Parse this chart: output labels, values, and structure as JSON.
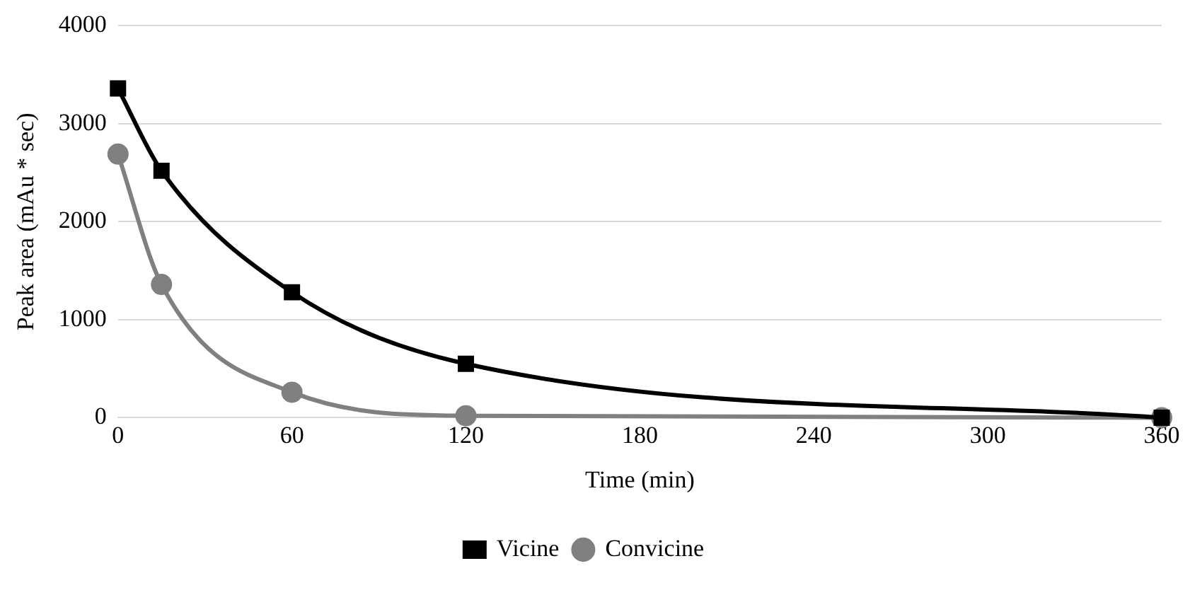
{
  "chart_data": {
    "type": "line",
    "xlabel": "Time (min)",
    "ylabel": "Peak area (mAu * sec)",
    "x": [
      0,
      15,
      60,
      120,
      360
    ],
    "series": [
      {
        "name": "Vicine",
        "color": "#000000",
        "marker": "square",
        "values": [
          3360,
          2520,
          1280,
          550,
          0
        ]
      },
      {
        "name": "Convicine",
        "color": "#808080",
        "marker": "circle",
        "values": [
          2690,
          1360,
          260,
          20,
          0
        ]
      }
    ],
    "xlim": [
      0,
      360
    ],
    "xticks": [
      0,
      60,
      120,
      180,
      240,
      300,
      360
    ],
    "ylim": [
      0,
      4000
    ],
    "yticks": [
      0,
      1000,
      2000,
      3000,
      4000
    ],
    "grid": "y",
    "legend": "bottom",
    "line_style": "solid"
  }
}
